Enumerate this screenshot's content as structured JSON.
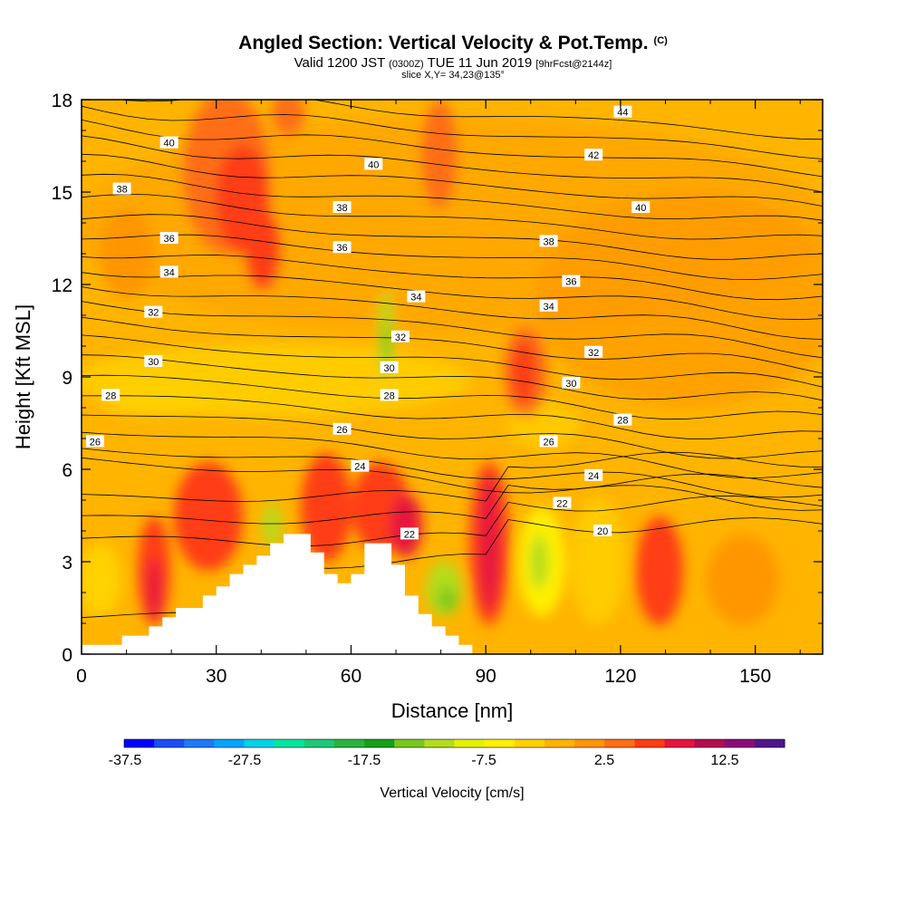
{
  "header": {
    "title": "Angled Section: Vertical Velocity & Pot.Temp.",
    "title_mark": "(C)",
    "valid_prefix": "Valid 1200 JST",
    "valid_utc": "(0300Z)",
    "valid_date": "TUE 11 Jun 2019",
    "forecast": "[9hrFcst@2144z]",
    "slice": "slice X,Y= 34,23@135°"
  },
  "chart_data": {
    "type": "heatmap",
    "xlabel": "Distance [nm]",
    "ylabel": "Height [Kft MSL]",
    "xlim": [
      0,
      165
    ],
    "ylim": [
      0,
      18
    ],
    "x_ticks": [
      0,
      30,
      60,
      90,
      120,
      150
    ],
    "y_ticks": [
      0,
      3,
      6,
      9,
      12,
      15,
      18
    ],
    "colorbar": {
      "label": "Vertical Velocity [cm/s]",
      "tick_labels": [
        "-37.5",
        "-27.5",
        "-17.5",
        "-7.5",
        "2.5",
        "12.5"
      ],
      "bins": 20,
      "colors": [
        "#0000ff",
        "#1a4df5",
        "#1e7af5",
        "#00a5ff",
        "#00d2e8",
        "#00e6a0",
        "#1ec878",
        "#28b43c",
        "#14a014",
        "#78c81e",
        "#b4dc1e",
        "#e6f000",
        "#fff000",
        "#ffd200",
        "#ffb400",
        "#ff9600",
        "#ff6e14",
        "#ff3c14",
        "#e6143c",
        "#b40a50",
        "#8c0a78",
        "#50148c"
      ]
    },
    "contours_pot_temp": {
      "levels": [
        20,
        21,
        22,
        23,
        24,
        25,
        26,
        27,
        28,
        29,
        30,
        31,
        32,
        33,
        34,
        35,
        36,
        37,
        38,
        39,
        40,
        41,
        42,
        43,
        44,
        45
      ],
      "labels": [
        {
          "text": "40",
          "x": 19.5,
          "y": 16.6
        },
        {
          "text": "44",
          "x": 120.5,
          "y": 17.6
        },
        {
          "text": "42",
          "x": 114,
          "y": 16.2
        },
        {
          "text": "40",
          "x": 65,
          "y": 15.9
        },
        {
          "text": "38",
          "x": 9,
          "y": 15.1
        },
        {
          "text": "38",
          "x": 58,
          "y": 14.5
        },
        {
          "text": "40",
          "x": 124.5,
          "y": 14.5
        },
        {
          "text": "36",
          "x": 19.5,
          "y": 13.5
        },
        {
          "text": "36",
          "x": 58,
          "y": 13.2
        },
        {
          "text": "38",
          "x": 104,
          "y": 13.4
        },
        {
          "text": "34",
          "x": 19.5,
          "y": 12.4
        },
        {
          "text": "36",
          "x": 109,
          "y": 12.1
        },
        {
          "text": "34",
          "x": 74.5,
          "y": 11.6
        },
        {
          "text": "34",
          "x": 104,
          "y": 11.3
        },
        {
          "text": "32",
          "x": 16,
          "y": 11.1
        },
        {
          "text": "32",
          "x": 71,
          "y": 10.3
        },
        {
          "text": "32",
          "x": 114,
          "y": 9.8
        },
        {
          "text": "30",
          "x": 16,
          "y": 9.5
        },
        {
          "text": "30",
          "x": 68.5,
          "y": 9.3
        },
        {
          "text": "30",
          "x": 109,
          "y": 8.8
        },
        {
          "text": "28",
          "x": 6.5,
          "y": 8.4
        },
        {
          "text": "28",
          "x": 68.5,
          "y": 8.4
        },
        {
          "text": "28",
          "x": 120.5,
          "y": 7.6
        },
        {
          "text": "26",
          "x": 58,
          "y": 7.3
        },
        {
          "text": "26",
          "x": 3,
          "y": 6.9
        },
        {
          "text": "26",
          "x": 104,
          "y": 6.9
        },
        {
          "text": "24",
          "x": 62,
          "y": 6.1
        },
        {
          "text": "24",
          "x": 114,
          "y": 5.8
        },
        {
          "text": "22",
          "x": 107,
          "y": 4.9
        },
        {
          "text": "22",
          "x": 73,
          "y": 3.9
        },
        {
          "text": "20",
          "x": 116,
          "y": 4.0
        }
      ]
    },
    "terrain": [
      {
        "x": 0,
        "y": 0.3
      },
      {
        "x": 9,
        "y": 0.3
      },
      {
        "x": 9,
        "y": 0.6
      },
      {
        "x": 15,
        "y": 0.6
      },
      {
        "x": 15,
        "y": 0.9
      },
      {
        "x": 18,
        "y": 0.9
      },
      {
        "x": 18,
        "y": 1.2
      },
      {
        "x": 21,
        "y": 1.2
      },
      {
        "x": 21,
        "y": 1.5
      },
      {
        "x": 27,
        "y": 1.5
      },
      {
        "x": 27,
        "y": 1.9
      },
      {
        "x": 30,
        "y": 1.9
      },
      {
        "x": 30,
        "y": 2.2
      },
      {
        "x": 33,
        "y": 2.2
      },
      {
        "x": 33,
        "y": 2.6
      },
      {
        "x": 36,
        "y": 2.6
      },
      {
        "x": 36,
        "y": 2.9
      },
      {
        "x": 39,
        "y": 2.9
      },
      {
        "x": 39,
        "y": 3.2
      },
      {
        "x": 42,
        "y": 3.2
      },
      {
        "x": 42,
        "y": 3.6
      },
      {
        "x": 45,
        "y": 3.6
      },
      {
        "x": 45,
        "y": 3.9
      },
      {
        "x": 51,
        "y": 3.9
      },
      {
        "x": 51,
        "y": 3.3
      },
      {
        "x": 54,
        "y": 3.3
      },
      {
        "x": 54,
        "y": 2.6
      },
      {
        "x": 57,
        "y": 2.6
      },
      {
        "x": 57,
        "y": 2.3
      },
      {
        "x": 60,
        "y": 2.3
      },
      {
        "x": 60,
        "y": 2.6
      },
      {
        "x": 63,
        "y": 2.6
      },
      {
        "x": 63,
        "y": 3.6
      },
      {
        "x": 69,
        "y": 3.6
      },
      {
        "x": 69,
        "y": 2.9
      },
      {
        "x": 72,
        "y": 2.9
      },
      {
        "x": 72,
        "y": 1.9
      },
      {
        "x": 75,
        "y": 1.9
      },
      {
        "x": 75,
        "y": 1.3
      },
      {
        "x": 78,
        "y": 1.3
      },
      {
        "x": 78,
        "y": 0.9
      },
      {
        "x": 81,
        "y": 0.9
      },
      {
        "x": 81,
        "y": 0.6
      },
      {
        "x": 84,
        "y": 0.6
      },
      {
        "x": 84,
        "y": 0.3
      },
      {
        "x": 87,
        "y": 0.3
      },
      {
        "x": 87,
        "y": 0
      }
    ]
  }
}
